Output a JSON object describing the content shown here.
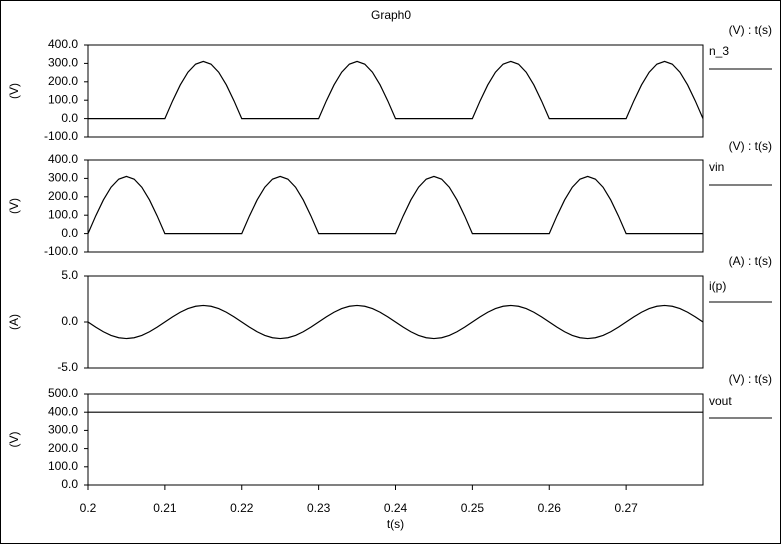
{
  "title": "Graph0",
  "chart_data": [
    {
      "type": "line",
      "ylabel": "(V)",
      "unit_label": "(V) : t(s)",
      "x": [
        0.2,
        0.201,
        0.202,
        0.203,
        0.204,
        0.205,
        0.206,
        0.207,
        0.208,
        0.209,
        0.21,
        0.211,
        0.212,
        0.213,
        0.214,
        0.215,
        0.216,
        0.217,
        0.218,
        0.219,
        0.22,
        0.221,
        0.222,
        0.223,
        0.224,
        0.225,
        0.226,
        0.227,
        0.228,
        0.229,
        0.23,
        0.231,
        0.232,
        0.233,
        0.234,
        0.235,
        0.236,
        0.237,
        0.238,
        0.239,
        0.24,
        0.241,
        0.242,
        0.243,
        0.244,
        0.245,
        0.246,
        0.247,
        0.248,
        0.249,
        0.25,
        0.251,
        0.252,
        0.253,
        0.254,
        0.255,
        0.256,
        0.257,
        0.258,
        0.259,
        0.26,
        0.261,
        0.262,
        0.263,
        0.264,
        0.265,
        0.266,
        0.267,
        0.268,
        0.269,
        0.27,
        0.271,
        0.272,
        0.273,
        0.274,
        0.275,
        0.276,
        0.277,
        0.278,
        0.279,
        0.28
      ],
      "series": [
        {
          "name": "n_3",
          "color": "#000000",
          "values": [
            0,
            0,
            0,
            0,
            0,
            0,
            0,
            0,
            0,
            0,
            0,
            96,
            183,
            252,
            296,
            311,
            296,
            252,
            183,
            96,
            0,
            0,
            0,
            0,
            0,
            0,
            0,
            0,
            0,
            0,
            0,
            96,
            183,
            252,
            296,
            311,
            296,
            252,
            183,
            96,
            0,
            0,
            0,
            0,
            0,
            0,
            0,
            0,
            0,
            0,
            0,
            96,
            183,
            252,
            296,
            311,
            296,
            252,
            183,
            96,
            0,
            0,
            0,
            0,
            0,
            0,
            0,
            0,
            0,
            0,
            0,
            96,
            183,
            252,
            296,
            311,
            296,
            252,
            183,
            96,
            0
          ]
        }
      ],
      "xlim": [
        0.2,
        0.28
      ],
      "ylim": [
        -100,
        400
      ],
      "yticks": [
        {
          "value": 400,
          "label": "400.0"
        },
        {
          "value": 300,
          "label": "300.0"
        },
        {
          "value": 200,
          "label": "200.0"
        },
        {
          "value": 100,
          "label": "100.0"
        },
        {
          "value": 0,
          "label": "0.0"
        },
        {
          "value": -100,
          "label": "-100.0"
        }
      ]
    },
    {
      "type": "line",
      "ylabel": "(V)",
      "unit_label": "(V) : t(s)",
      "x": [
        0.2,
        0.201,
        0.202,
        0.203,
        0.204,
        0.205,
        0.206,
        0.207,
        0.208,
        0.209,
        0.21,
        0.211,
        0.212,
        0.213,
        0.214,
        0.215,
        0.216,
        0.217,
        0.218,
        0.219,
        0.22,
        0.221,
        0.222,
        0.223,
        0.224,
        0.225,
        0.226,
        0.227,
        0.228,
        0.229,
        0.23,
        0.231,
        0.232,
        0.233,
        0.234,
        0.235,
        0.236,
        0.237,
        0.238,
        0.239,
        0.24,
        0.241,
        0.242,
        0.243,
        0.244,
        0.245,
        0.246,
        0.247,
        0.248,
        0.249,
        0.25,
        0.251,
        0.252,
        0.253,
        0.254,
        0.255,
        0.256,
        0.257,
        0.258,
        0.259,
        0.26,
        0.261,
        0.262,
        0.263,
        0.264,
        0.265,
        0.266,
        0.267,
        0.268,
        0.269,
        0.27,
        0.271,
        0.272,
        0.273,
        0.274,
        0.275,
        0.276,
        0.277,
        0.278,
        0.279,
        0.28
      ],
      "series": [
        {
          "name": "vin",
          "color": "#000000",
          "values": [
            0,
            96,
            183,
            252,
            296,
            311,
            296,
            252,
            183,
            96,
            0,
            0,
            0,
            0,
            0,
            0,
            0,
            0,
            0,
            0,
            0,
            96,
            183,
            252,
            296,
            311,
            296,
            252,
            183,
            96,
            0,
            0,
            0,
            0,
            0,
            0,
            0,
            0,
            0,
            0,
            0,
            96,
            183,
            252,
            296,
            311,
            296,
            252,
            183,
            96,
            0,
            0,
            0,
            0,
            0,
            0,
            0,
            0,
            0,
            0,
            0,
            96,
            183,
            252,
            296,
            311,
            296,
            252,
            183,
            96,
            0,
            0,
            0,
            0,
            0,
            0,
            0,
            0,
            0,
            0,
            0
          ]
        }
      ],
      "xlim": [
        0.2,
        0.28
      ],
      "ylim": [
        -100,
        400
      ],
      "yticks": [
        {
          "value": 400,
          "label": "400.0"
        },
        {
          "value": 300,
          "label": "300.0"
        },
        {
          "value": 200,
          "label": "200.0"
        },
        {
          "value": 100,
          "label": "100.0"
        },
        {
          "value": 0,
          "label": "0.0"
        },
        {
          "value": -100,
          "label": "-100.0"
        }
      ]
    },
    {
      "type": "line",
      "ylabel": "(A)",
      "unit_label": "(A) : t(s)",
      "x": [
        0.2,
        0.201,
        0.202,
        0.203,
        0.204,
        0.205,
        0.206,
        0.207,
        0.208,
        0.209,
        0.21,
        0.211,
        0.212,
        0.213,
        0.214,
        0.215,
        0.216,
        0.217,
        0.218,
        0.219,
        0.22,
        0.221,
        0.222,
        0.223,
        0.224,
        0.225,
        0.226,
        0.227,
        0.228,
        0.229,
        0.23,
        0.231,
        0.232,
        0.233,
        0.234,
        0.235,
        0.236,
        0.237,
        0.238,
        0.239,
        0.24,
        0.241,
        0.242,
        0.243,
        0.244,
        0.245,
        0.246,
        0.247,
        0.248,
        0.249,
        0.25,
        0.251,
        0.252,
        0.253,
        0.254,
        0.255,
        0.256,
        0.257,
        0.258,
        0.259,
        0.26,
        0.261,
        0.262,
        0.263,
        0.264,
        0.265,
        0.266,
        0.267,
        0.268,
        0.269,
        0.27,
        0.271,
        0.272,
        0.273,
        0.274,
        0.275,
        0.276,
        0.277,
        0.278,
        0.279,
        0.28
      ],
      "series": [
        {
          "name": "i(p)",
          "color": "#000000",
          "values": [
            0,
            -0.56,
            -1.06,
            -1.46,
            -1.71,
            -1.8,
            -1.71,
            -1.46,
            -1.06,
            -0.56,
            0,
            0.56,
            1.06,
            1.46,
            1.71,
            1.8,
            1.71,
            1.46,
            1.06,
            0.56,
            0,
            -0.56,
            -1.06,
            -1.46,
            -1.71,
            -1.8,
            -1.71,
            -1.46,
            -1.06,
            -0.56,
            0,
            0.56,
            1.06,
            1.46,
            1.71,
            1.8,
            1.71,
            1.46,
            1.06,
            0.56,
            0,
            -0.56,
            -1.06,
            -1.46,
            -1.71,
            -1.8,
            -1.71,
            -1.46,
            -1.06,
            -0.56,
            0,
            0.56,
            1.06,
            1.46,
            1.71,
            1.8,
            1.71,
            1.46,
            1.06,
            0.56,
            0,
            -0.56,
            -1.06,
            -1.46,
            -1.71,
            -1.8,
            -1.71,
            -1.46,
            -1.06,
            -0.56,
            0,
            0.56,
            1.06,
            1.46,
            1.71,
            1.8,
            1.71,
            1.46,
            1.06,
            0.56,
            0
          ]
        }
      ],
      "xlim": [
        0.2,
        0.28
      ],
      "ylim": [
        -5,
        5
      ],
      "yticks": [
        {
          "value": 5,
          "label": "5.0"
        },
        {
          "value": 0,
          "label": "0.0"
        },
        {
          "value": -5,
          "label": "-5.0"
        }
      ]
    },
    {
      "type": "line",
      "ylabel": "(V)",
      "unit_label": "(V) : t(s)",
      "xlabel": "t(s)",
      "x": [
        0.2,
        0.24,
        0.28
      ],
      "series": [
        {
          "name": "vout",
          "color": "#000000",
          "values": [
            400,
            400,
            400
          ]
        }
      ],
      "xlim": [
        0.2,
        0.28
      ],
      "ylim": [
        0,
        500
      ],
      "xticks": [
        0.2,
        0.21,
        0.22,
        0.23,
        0.24,
        0.25,
        0.26,
        0.27
      ],
      "yticks": [
        {
          "value": 500,
          "label": "500.0"
        },
        {
          "value": 400,
          "label": "400.0"
        },
        {
          "value": 300,
          "label": "300.0"
        },
        {
          "value": 200,
          "label": "200.0"
        },
        {
          "value": 100,
          "label": "100.0"
        },
        {
          "value": 0,
          "label": "0.0"
        }
      ]
    }
  ]
}
